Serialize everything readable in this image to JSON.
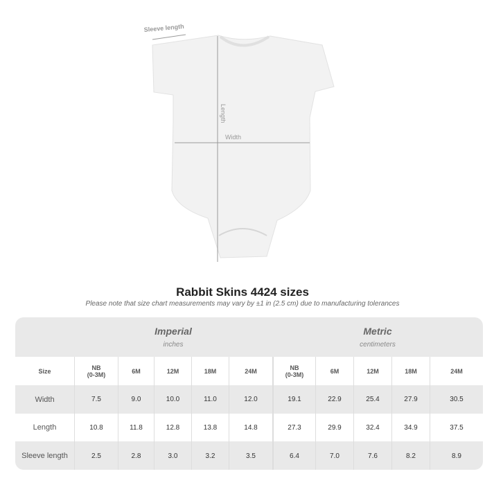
{
  "diagram": {
    "sleeve_label": "Sleeve length",
    "length_label": "Length",
    "width_label": "Width"
  },
  "title": "Rabbit Skins 4424 sizes",
  "note": "Please note that size chart measurements may vary by ±1 in (2.5 cm) due to manufacturing tolerances",
  "table": {
    "imperial": {
      "name": "Imperial",
      "unit": "inches"
    },
    "metric": {
      "name": "Metric",
      "unit": "centimeters"
    },
    "size_label": "Size",
    "sizes": [
      "NB\n(0-3M)",
      "6M",
      "12M",
      "18M",
      "24M",
      "NB\n(0-3M)",
      "6M",
      "12M",
      "18M",
      "24M"
    ],
    "rows": [
      {
        "label": "Width",
        "values": [
          "7.5",
          "9.0",
          "10.0",
          "11.0",
          "12.0",
          "19.1",
          "22.9",
          "25.4",
          "27.9",
          "30.5"
        ]
      },
      {
        "label": "Length",
        "values": [
          "10.8",
          "11.8",
          "12.8",
          "13.8",
          "14.8",
          "27.3",
          "29.9",
          "32.4",
          "34.9",
          "37.5"
        ]
      },
      {
        "label": "Sleeve length",
        "values": [
          "2.5",
          "2.8",
          "3.0",
          "3.2",
          "3.5",
          "6.4",
          "7.0",
          "7.6",
          "8.2",
          "8.9"
        ]
      }
    ]
  }
}
